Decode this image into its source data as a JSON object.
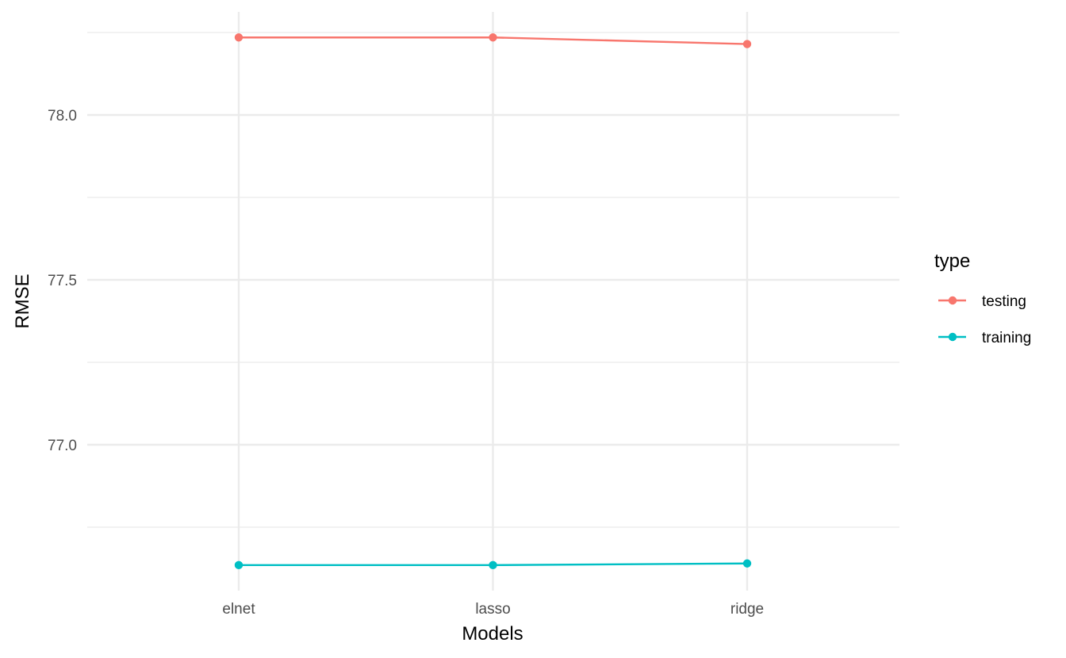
{
  "chart_data": {
    "type": "line",
    "xlabel": "Models",
    "ylabel": "RMSE",
    "categories": [
      "elnet",
      "lasso",
      "ridge"
    ],
    "ylim": [
      76.75,
      78.25
    ],
    "y_major_ticks": [
      77.0,
      77.5,
      78.0
    ],
    "y_tick_labels": [
      "77.0",
      "77.5",
      "78.0"
    ],
    "grid": true,
    "legend": {
      "title": "type",
      "placement": "right",
      "entries": [
        "testing",
        "training"
      ]
    },
    "series": [
      {
        "name": "testing",
        "color": "#F8766D",
        "values": [
          78.235,
          78.235,
          78.215
        ]
      },
      {
        "name": "training",
        "color": "#00BFC4",
        "values": [
          76.635,
          76.635,
          76.64
        ]
      }
    ]
  }
}
